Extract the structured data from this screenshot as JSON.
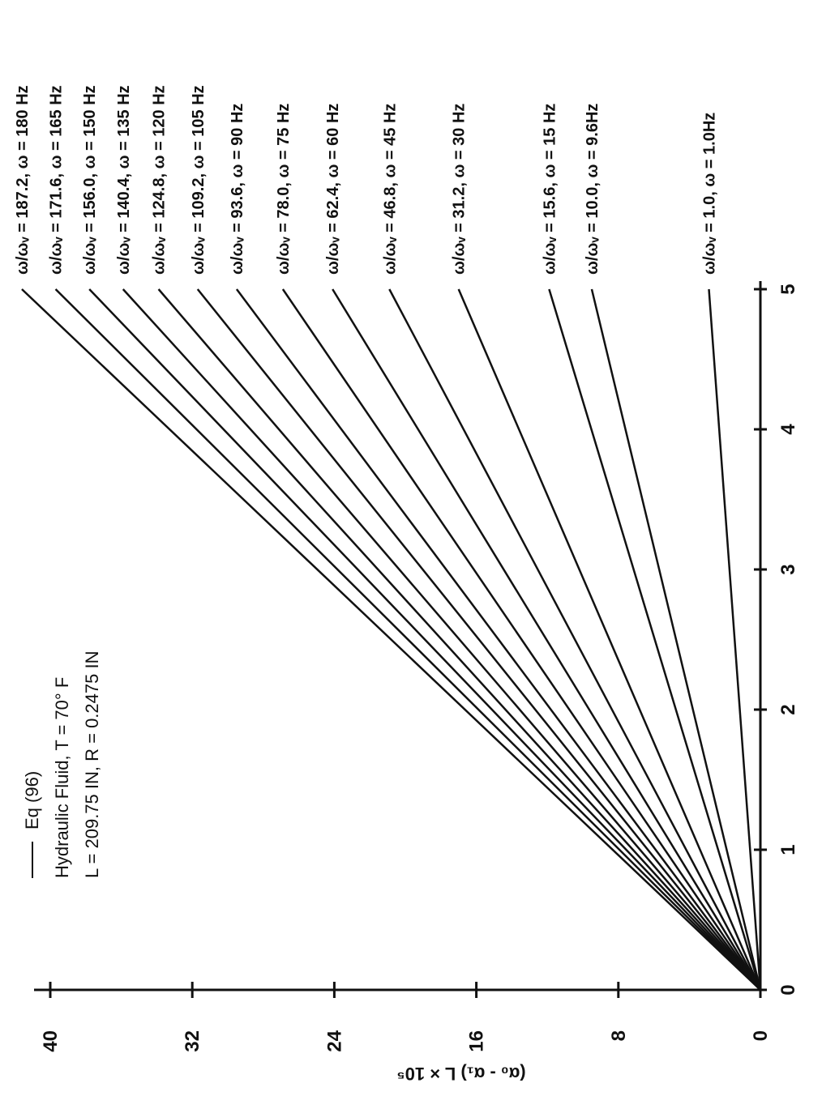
{
  "chart_data": {
    "type": "line",
    "title": "",
    "legend": {
      "line_label": "Eq (96)",
      "fluid_text": "Hydraulic Fluid, T = 70° F",
      "dims_text": "L = 209.75 IN, R = 0.2475 IN"
    },
    "xlabel": "",
    "ylabel": "(α₀ - α₁) L × 10⁵",
    "xlim": [
      0,
      5
    ],
    "ylim": [
      0,
      40
    ],
    "x_ticks": [
      "0",
      "1",
      "2",
      "3",
      "4",
      "5"
    ],
    "y_ticks": [
      "0",
      "8",
      "16",
      "24",
      "32",
      "40"
    ],
    "orientation": "rotated 90 degrees counter-clockwise on the page",
    "series": [
      {
        "label": "ω/ωᵥ = 187.2, ω = 180 Hz",
        "x": [
          0,
          5
        ],
        "y": [
          0,
          41.6
        ]
      },
      {
        "label": "ω/ωᵥ = 171.6, ω = 165 Hz",
        "x": [
          0,
          5
        ],
        "y": [
          0,
          39.7
        ]
      },
      {
        "label": "ω/ωᵥ = 156.0, ω = 150 Hz",
        "x": [
          0,
          5
        ],
        "y": [
          0,
          37.8
        ]
      },
      {
        "label": "ω/ωᵥ = 140.4, ω = 135 Hz",
        "x": [
          0,
          5
        ],
        "y": [
          0,
          35.9
        ]
      },
      {
        "label": "ω/ωᵥ = 124.8, ω = 120 Hz",
        "x": [
          0,
          5
        ],
        "y": [
          0,
          33.9
        ]
      },
      {
        "label": "ω/ωᵥ = 109.2, ω = 105 Hz",
        "x": [
          0,
          5
        ],
        "y": [
          0,
          31.7
        ]
      },
      {
        "label": "ω/ωᵥ =   93.6, ω =   90 Hz",
        "x": [
          0,
          5
        ],
        "y": [
          0,
          29.5
        ]
      },
      {
        "label": "ω/ωᵥ =   78.0, ω =   75 Hz",
        "x": [
          0,
          5
        ],
        "y": [
          0,
          26.9
        ]
      },
      {
        "label": "ω/ωᵥ =   62.4, ω =   60 Hz",
        "x": [
          0,
          5
        ],
        "y": [
          0,
          24.1
        ]
      },
      {
        "label": "ω/ωᵥ =   46.8, ω =   45 Hz",
        "x": [
          0,
          5
        ],
        "y": [
          0,
          20.9
        ]
      },
      {
        "label": "ω/ωᵥ =   31.2, ω =   30 Hz",
        "x": [
          0,
          5
        ],
        "y": [
          0,
          17.0
        ]
      },
      {
        "label": "ω/ωᵥ =   15.6, ω =   15 Hz",
        "x": [
          0,
          5
        ],
        "y": [
          0,
          11.9
        ]
      },
      {
        "label": "ω/ωᵥ =   10.0, ω =   9.6Hz",
        "x": [
          0,
          5
        ],
        "y": [
          0,
          9.5
        ]
      },
      {
        "label": "ω/ωᵥ =     1.0, ω =     1.0Hz",
        "x": [
          0,
          5
        ],
        "y": [
          0,
          2.9
        ]
      }
    ],
    "grid": false,
    "legend_placement": "upper-left of plot area"
  }
}
